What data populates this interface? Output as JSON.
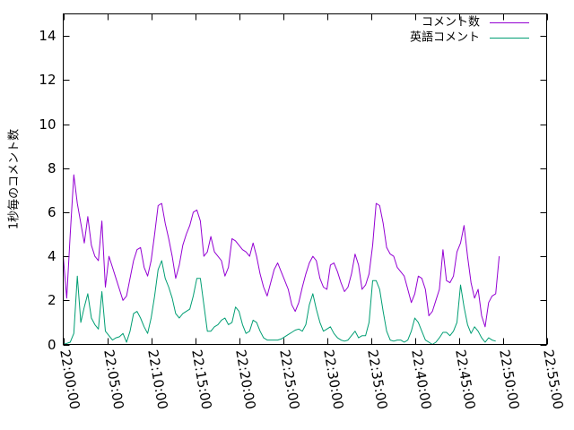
{
  "chart_data": {
    "type": "line",
    "title": "",
    "xlabel": "",
    "ylabel": "1秒毎のコメント数",
    "ylim": [
      0,
      15
    ],
    "yticks": [
      0,
      2,
      4,
      6,
      8,
      10,
      12,
      14
    ],
    "xlim_minutes": [
      0,
      55
    ],
    "xticks": [
      {
        "m": 0,
        "label": "22:00:00"
      },
      {
        "m": 5,
        "label": "22:05:00"
      },
      {
        "m": 10,
        "label": "22:10:00"
      },
      {
        "m": 15,
        "label": "22:15:00"
      },
      {
        "m": 20,
        "label": "22:20:00"
      },
      {
        "m": 25,
        "label": "22:25:00"
      },
      {
        "m": 30,
        "label": "22:30:00"
      },
      {
        "m": 35,
        "label": "22:35:00"
      },
      {
        "m": 40,
        "label": "22:40:00"
      },
      {
        "m": 45,
        "label": "22:45:00"
      },
      {
        "m": 50,
        "label": "22:50:00"
      },
      {
        "m": 55,
        "label": "22:55:00"
      }
    ],
    "legend_position": "top-right",
    "grid": false,
    "series": [
      {
        "name": "コメント数",
        "color": "#9400d3",
        "points": [
          [
            0,
            4.0
          ],
          [
            0.4,
            2.1
          ],
          [
            0.8,
            5.0
          ],
          [
            1.2,
            7.7
          ],
          [
            1.6,
            6.4
          ],
          [
            2.0,
            5.5
          ],
          [
            2.4,
            4.6
          ],
          [
            2.8,
            5.8
          ],
          [
            3.2,
            4.5
          ],
          [
            3.6,
            4.0
          ],
          [
            4.0,
            3.8
          ],
          [
            4.4,
            5.6
          ],
          [
            4.8,
            2.6
          ],
          [
            5.2,
            4.0
          ],
          [
            5.6,
            3.5
          ],
          [
            6.0,
            3.0
          ],
          [
            6.4,
            2.5
          ],
          [
            6.8,
            2.0
          ],
          [
            7.2,
            2.2
          ],
          [
            7.6,
            3.0
          ],
          [
            8.0,
            3.8
          ],
          [
            8.4,
            4.3
          ],
          [
            8.8,
            4.4
          ],
          [
            9.2,
            3.5
          ],
          [
            9.6,
            3.1
          ],
          [
            10.0,
            3.8
          ],
          [
            10.4,
            5.0
          ],
          [
            10.8,
            6.3
          ],
          [
            11.2,
            6.4
          ],
          [
            11.6,
            5.5
          ],
          [
            12.0,
            4.8
          ],
          [
            12.4,
            4.0
          ],
          [
            12.8,
            3.0
          ],
          [
            13.2,
            3.6
          ],
          [
            13.6,
            4.5
          ],
          [
            14.0,
            5.0
          ],
          [
            14.4,
            5.4
          ],
          [
            14.8,
            6.0
          ],
          [
            15.2,
            6.1
          ],
          [
            15.6,
            5.6
          ],
          [
            16.0,
            4.0
          ],
          [
            16.4,
            4.2
          ],
          [
            16.8,
            4.9
          ],
          [
            17.2,
            4.2
          ],
          [
            17.6,
            4.0
          ],
          [
            18.0,
            3.8
          ],
          [
            18.4,
            3.1
          ],
          [
            18.8,
            3.5
          ],
          [
            19.2,
            4.8
          ],
          [
            19.6,
            4.7
          ],
          [
            20.0,
            4.5
          ],
          [
            20.4,
            4.3
          ],
          [
            20.8,
            4.2
          ],
          [
            21.2,
            4.0
          ],
          [
            21.6,
            4.6
          ],
          [
            22.0,
            4.0
          ],
          [
            22.4,
            3.2
          ],
          [
            22.8,
            2.6
          ],
          [
            23.2,
            2.2
          ],
          [
            23.6,
            2.8
          ],
          [
            24.0,
            3.4
          ],
          [
            24.4,
            3.7
          ],
          [
            24.8,
            3.3
          ],
          [
            25.2,
            2.9
          ],
          [
            25.6,
            2.5
          ],
          [
            26.0,
            1.8
          ],
          [
            26.4,
            1.5
          ],
          [
            26.8,
            1.9
          ],
          [
            27.2,
            2.6
          ],
          [
            27.6,
            3.2
          ],
          [
            28.0,
            3.7
          ],
          [
            28.4,
            4.0
          ],
          [
            28.8,
            3.8
          ],
          [
            29.2,
            3.0
          ],
          [
            29.6,
            2.6
          ],
          [
            30.0,
            2.5
          ],
          [
            30.4,
            3.6
          ],
          [
            30.8,
            3.7
          ],
          [
            31.2,
            3.3
          ],
          [
            31.6,
            2.8
          ],
          [
            32.0,
            2.4
          ],
          [
            32.4,
            2.6
          ],
          [
            32.8,
            3.2
          ],
          [
            33.2,
            4.1
          ],
          [
            33.6,
            3.6
          ],
          [
            34.0,
            2.5
          ],
          [
            34.4,
            2.7
          ],
          [
            34.8,
            3.2
          ],
          [
            35.2,
            4.5
          ],
          [
            35.6,
            6.4
          ],
          [
            36.0,
            6.3
          ],
          [
            36.4,
            5.5
          ],
          [
            36.8,
            4.4
          ],
          [
            37.2,
            4.1
          ],
          [
            37.6,
            4.0
          ],
          [
            38.0,
            3.5
          ],
          [
            38.4,
            3.3
          ],
          [
            38.8,
            3.1
          ],
          [
            39.2,
            2.5
          ],
          [
            39.6,
            1.9
          ],
          [
            40.0,
            2.3
          ],
          [
            40.4,
            3.1
          ],
          [
            40.8,
            3.0
          ],
          [
            41.2,
            2.5
          ],
          [
            41.6,
            1.3
          ],
          [
            42.0,
            1.5
          ],
          [
            42.4,
            2.0
          ],
          [
            42.8,
            2.5
          ],
          [
            43.2,
            4.3
          ],
          [
            43.6,
            2.9
          ],
          [
            44.0,
            2.8
          ],
          [
            44.4,
            3.1
          ],
          [
            44.8,
            4.2
          ],
          [
            45.2,
            4.6
          ],
          [
            45.6,
            5.4
          ],
          [
            46.0,
            4.0
          ],
          [
            46.4,
            2.8
          ],
          [
            46.8,
            2.1
          ],
          [
            47.2,
            2.5
          ],
          [
            47.6,
            1.3
          ],
          [
            48.0,
            0.8
          ],
          [
            48.4,
            1.9
          ],
          [
            48.8,
            2.2
          ],
          [
            49.2,
            2.3
          ],
          [
            49.6,
            4.0
          ]
        ]
      },
      {
        "name": "英語コメント",
        "color": "#009e73",
        "points": [
          [
            0,
            0.0
          ],
          [
            0.4,
            0.05
          ],
          [
            0.8,
            0.1
          ],
          [
            1.2,
            0.5
          ],
          [
            1.6,
            3.1
          ],
          [
            2.0,
            1.0
          ],
          [
            2.4,
            1.7
          ],
          [
            2.8,
            2.3
          ],
          [
            3.2,
            1.2
          ],
          [
            3.6,
            0.9
          ],
          [
            4.0,
            0.7
          ],
          [
            4.4,
            2.4
          ],
          [
            4.8,
            0.6
          ],
          [
            5.2,
            0.4
          ],
          [
            5.6,
            0.2
          ],
          [
            6.0,
            0.3
          ],
          [
            6.4,
            0.35
          ],
          [
            6.8,
            0.5
          ],
          [
            7.2,
            0.1
          ],
          [
            7.6,
            0.6
          ],
          [
            8.0,
            1.4
          ],
          [
            8.4,
            1.5
          ],
          [
            8.8,
            1.2
          ],
          [
            9.2,
            0.8
          ],
          [
            9.6,
            0.5
          ],
          [
            10.0,
            1.2
          ],
          [
            10.4,
            2.2
          ],
          [
            10.8,
            3.4
          ],
          [
            11.2,
            3.8
          ],
          [
            11.6,
            3.0
          ],
          [
            12.0,
            2.6
          ],
          [
            12.4,
            2.1
          ],
          [
            12.8,
            1.4
          ],
          [
            13.2,
            1.2
          ],
          [
            13.6,
            1.4
          ],
          [
            14.0,
            1.5
          ],
          [
            14.4,
            1.6
          ],
          [
            14.8,
            2.2
          ],
          [
            15.2,
            3.0
          ],
          [
            15.6,
            3.0
          ],
          [
            16.0,
            1.8
          ],
          [
            16.4,
            0.6
          ],
          [
            16.8,
            0.6
          ],
          [
            17.2,
            0.8
          ],
          [
            17.6,
            0.9
          ],
          [
            18.0,
            1.1
          ],
          [
            18.4,
            1.2
          ],
          [
            18.8,
            0.9
          ],
          [
            19.2,
            1.0
          ],
          [
            19.6,
            1.7
          ],
          [
            20.0,
            1.5
          ],
          [
            20.4,
            0.9
          ],
          [
            20.8,
            0.5
          ],
          [
            21.2,
            0.6
          ],
          [
            21.6,
            1.1
          ],
          [
            22.0,
            1.0
          ],
          [
            22.4,
            0.6
          ],
          [
            22.8,
            0.3
          ],
          [
            23.2,
            0.2
          ],
          [
            23.6,
            0.2
          ],
          [
            24.0,
            0.2
          ],
          [
            24.4,
            0.2
          ],
          [
            24.8,
            0.25
          ],
          [
            25.2,
            0.35
          ],
          [
            25.6,
            0.45
          ],
          [
            26.0,
            0.55
          ],
          [
            26.4,
            0.65
          ],
          [
            26.8,
            0.7
          ],
          [
            27.2,
            0.6
          ],
          [
            27.6,
            0.9
          ],
          [
            28.0,
            1.8
          ],
          [
            28.4,
            2.3
          ],
          [
            28.8,
            1.6
          ],
          [
            29.2,
            1.0
          ],
          [
            29.6,
            0.6
          ],
          [
            30.0,
            0.7
          ],
          [
            30.4,
            0.8
          ],
          [
            30.8,
            0.5
          ],
          [
            31.2,
            0.3
          ],
          [
            31.6,
            0.2
          ],
          [
            32.0,
            0.15
          ],
          [
            32.4,
            0.2
          ],
          [
            32.8,
            0.4
          ],
          [
            33.2,
            0.6
          ],
          [
            33.6,
            0.3
          ],
          [
            34.0,
            0.4
          ],
          [
            34.4,
            0.4
          ],
          [
            34.8,
            1.0
          ],
          [
            35.2,
            2.9
          ],
          [
            35.6,
            2.9
          ],
          [
            36.0,
            2.5
          ],
          [
            36.4,
            1.5
          ],
          [
            36.8,
            0.6
          ],
          [
            37.2,
            0.2
          ],
          [
            37.6,
            0.15
          ],
          [
            38.0,
            0.2
          ],
          [
            38.4,
            0.2
          ],
          [
            38.8,
            0.1
          ],
          [
            39.2,
            0.2
          ],
          [
            39.6,
            0.6
          ],
          [
            40.0,
            1.2
          ],
          [
            40.4,
            1.0
          ],
          [
            40.8,
            0.6
          ],
          [
            41.2,
            0.2
          ],
          [
            41.6,
            0.1
          ],
          [
            42.0,
            0.0
          ],
          [
            42.4,
            0.1
          ],
          [
            42.8,
            0.3
          ],
          [
            43.2,
            0.55
          ],
          [
            43.6,
            0.55
          ],
          [
            44.0,
            0.4
          ],
          [
            44.4,
            0.6
          ],
          [
            44.8,
            1.0
          ],
          [
            45.2,
            2.7
          ],
          [
            45.6,
            1.7
          ],
          [
            46.0,
            0.9
          ],
          [
            46.4,
            0.5
          ],
          [
            46.8,
            0.8
          ],
          [
            47.2,
            0.6
          ],
          [
            47.6,
            0.3
          ],
          [
            48.0,
            0.1
          ],
          [
            48.4,
            0.3
          ],
          [
            48.8,
            0.2
          ],
          [
            49.2,
            0.15
          ]
        ]
      }
    ]
  }
}
